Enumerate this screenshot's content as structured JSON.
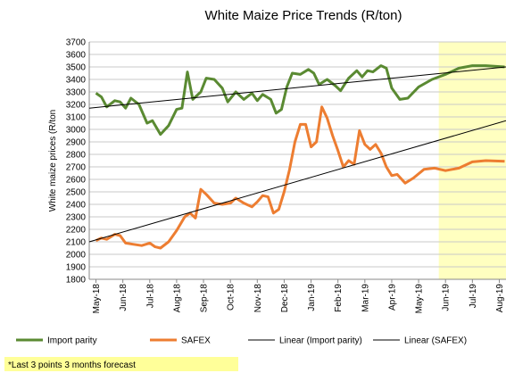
{
  "chart_data": {
    "type": "line",
    "title": "White Maize Price Trends (R/ton)",
    "y_label": "White maize prices (R/ton",
    "footnote": "*Last 3 points 3 months forecast",
    "xlim": [
      -0.25,
      15.25
    ],
    "ylim": [
      1800,
      3700
    ],
    "yticks": [
      1800,
      1900,
      2000,
      2100,
      2200,
      2300,
      2400,
      2500,
      2600,
      2700,
      2800,
      2900,
      3000,
      3100,
      3200,
      3300,
      3400,
      3500,
      3600,
      3700
    ],
    "xticks": [
      {
        "value": 0,
        "label": "May-18"
      },
      {
        "value": 1,
        "label": "Jun-18"
      },
      {
        "value": 2,
        "label": "Jul-18"
      },
      {
        "value": 3,
        "label": "Aug-18"
      },
      {
        "value": 4,
        "label": "Sep-18"
      },
      {
        "value": 5,
        "label": "Oct-18"
      },
      {
        "value": 6,
        "label": "Nov-18"
      },
      {
        "value": 7,
        "label": "Dec-18"
      },
      {
        "value": 8,
        "label": "Jan-19"
      },
      {
        "value": 9,
        "label": "Feb-19"
      },
      {
        "value": 10,
        "label": "Mar-19"
      },
      {
        "value": 11,
        "label": "Apr-19"
      },
      {
        "value": 12,
        "label": "May-19"
      },
      {
        "value": 13,
        "label": "Jun-19"
      },
      {
        "value": 14,
        "label": "Jul-19"
      },
      {
        "value": 15,
        "label": "Aug-19"
      }
    ],
    "grid": true,
    "forecast_region": [
      12.75,
      15.25
    ],
    "forecast_color": "#ffffc0",
    "series": [
      {
        "name": "Import parity",
        "color": "#5a8a32",
        "width": 3,
        "x": [
          0,
          0.2,
          0.4,
          0.7,
          0.9,
          1.1,
          1.3,
          1.6,
          1.9,
          2.1,
          2.4,
          2.7,
          3.0,
          3.2,
          3.4,
          3.6,
          3.9,
          4.1,
          4.4,
          4.7,
          4.9,
          5.2,
          5.5,
          5.8,
          6.0,
          6.2,
          6.5,
          6.7,
          6.9,
          7.1,
          7.3,
          7.6,
          7.9,
          8.1,
          8.3,
          8.6,
          8.9,
          9.1,
          9.4,
          9.7,
          9.9,
          10.1,
          10.3,
          10.6,
          10.8,
          11.0,
          11.3,
          11.6,
          12.0,
          12.5,
          13.0,
          13.5,
          14.0,
          14.5,
          15.2
        ],
        "values": [
          3290,
          3260,
          3180,
          3230,
          3220,
          3170,
          3250,
          3200,
          3050,
          3070,
          2960,
          3030,
          3160,
          3170,
          3460,
          3240,
          3300,
          3410,
          3400,
          3330,
          3220,
          3300,
          3240,
          3290,
          3230,
          3280,
          3240,
          3130,
          3160,
          3340,
          3450,
          3440,
          3480,
          3450,
          3360,
          3400,
          3350,
          3310,
          3410,
          3470,
          3420,
          3470,
          3460,
          3510,
          3490,
          3330,
          3240,
          3250,
          3340,
          3400,
          3440,
          3490,
          3510,
          3510,
          3500
        ]
      },
      {
        "name": "SAFEX",
        "color": "#ed7d31",
        "width": 3,
        "x": [
          0,
          0.2,
          0.4,
          0.7,
          0.9,
          1.1,
          1.4,
          1.7,
          2.0,
          2.2,
          2.4,
          2.7,
          3.0,
          3.3,
          3.5,
          3.7,
          3.9,
          4.1,
          4.4,
          4.7,
          5.0,
          5.2,
          5.5,
          5.8,
          6.0,
          6.2,
          6.4,
          6.6,
          6.8,
          7.0,
          7.2,
          7.4,
          7.6,
          7.8,
          8.0,
          8.2,
          8.4,
          8.6,
          8.8,
          9.0,
          9.2,
          9.4,
          9.6,
          9.8,
          10.0,
          10.2,
          10.4,
          10.6,
          10.8,
          11.0,
          11.2,
          11.5,
          11.8,
          12.2,
          12.6,
          13.0,
          13.5,
          14.0,
          14.5,
          15.2
        ],
        "values": [
          2110,
          2130,
          2120,
          2160,
          2150,
          2090,
          2080,
          2070,
          2090,
          2060,
          2050,
          2100,
          2190,
          2300,
          2330,
          2290,
          2520,
          2480,
          2410,
          2400,
          2410,
          2450,
          2410,
          2380,
          2420,
          2470,
          2460,
          2330,
          2360,
          2500,
          2680,
          2900,
          3040,
          3040,
          2860,
          2900,
          3180,
          3090,
          2950,
          2830,
          2700,
          2750,
          2720,
          2990,
          2880,
          2840,
          2880,
          2810,
          2700,
          2630,
          2640,
          2570,
          2610,
          2680,
          2690,
          2670,
          2690,
          2740,
          2750,
          2745
        ]
      },
      {
        "name": "Linear (Import parity)",
        "color": "#000000",
        "width": 1,
        "x": [
          -0.25,
          15.25
        ],
        "values": [
          3170,
          3500
        ]
      },
      {
        "name": "Linear (SAFEX)",
        "color": "#000000",
        "width": 1,
        "x": [
          -0.25,
          15.25
        ],
        "values": [
          2100,
          3070
        ]
      }
    ]
  }
}
